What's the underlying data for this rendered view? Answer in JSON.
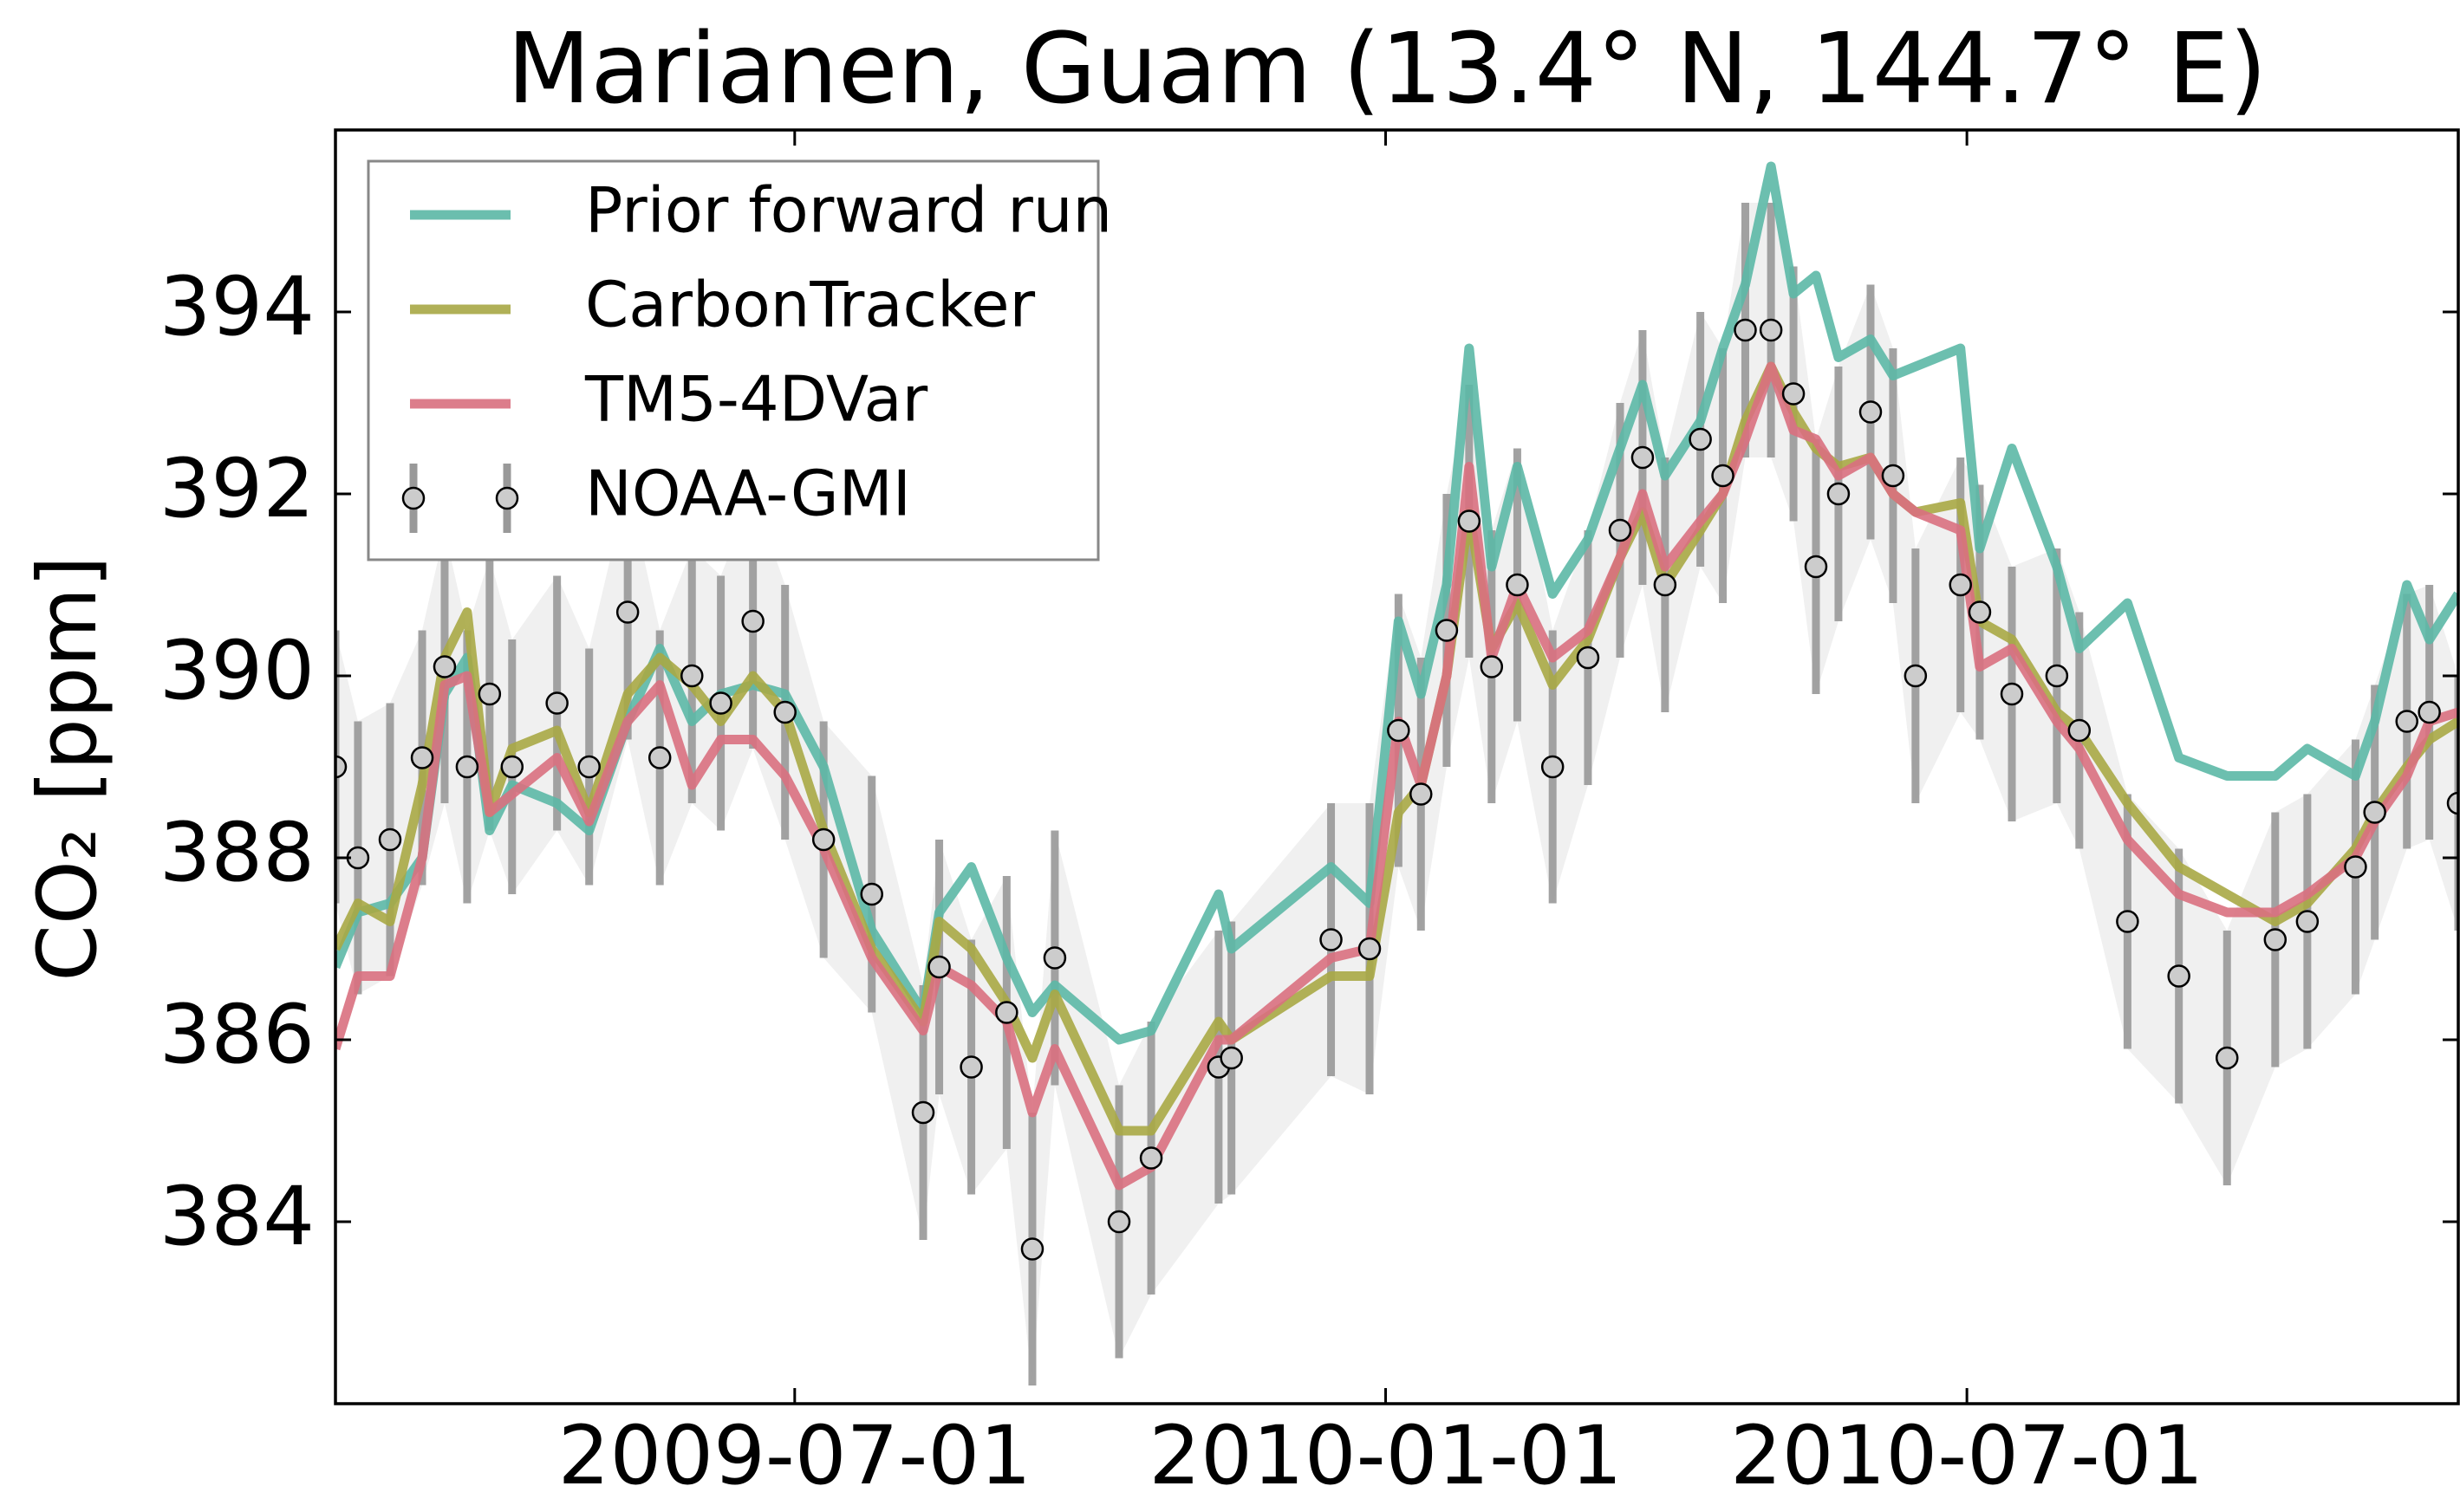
{
  "chart_data": {
    "type": "line",
    "title": "Marianen, Guam (13.4° N, 144.7° E)",
    "ylabel": "CO₂ [ppm]",
    "x": [
      "2009-02-08",
      "2009-02-15",
      "2009-02-25",
      "2009-03-07",
      "2009-03-14",
      "2009-03-21",
      "2009-03-28",
      "2009-04-04",
      "2009-04-18",
      "2009-04-28",
      "2009-05-10",
      "2009-05-20",
      "2009-05-30",
      "2009-06-08",
      "2009-06-18",
      "2009-06-28",
      "2009-07-10",
      "2009-07-25",
      "2009-08-10",
      "2009-08-15",
      "2009-08-25",
      "2009-09-05",
      "2009-09-13",
      "2009-09-20",
      "2009-10-10",
      "2009-10-20",
      "2009-11-10",
      "2009-11-14",
      "2009-12-15",
      "2009-12-27",
      "2010-01-05",
      "2010-01-12",
      "2010-01-20",
      "2010-01-27",
      "2010-02-03",
      "2010-02-11",
      "2010-02-22",
      "2010-03-05",
      "2010-03-15",
      "2010-03-22",
      "2010-03-29",
      "2010-04-09",
      "2010-04-16",
      "2010-04-23",
      "2010-05-01",
      "2010-05-08",
      "2010-05-15",
      "2010-05-22",
      "2010-06-01",
      "2010-06-08",
      "2010-06-15",
      "2010-06-29",
      "2010-07-05",
      "2010-07-15",
      "2010-07-29",
      "2010-08-05",
      "2010-08-20",
      "2010-09-05",
      "2010-09-20",
      "2010-10-05",
      "2010-10-15",
      "2010-10-30",
      "2010-11-05",
      "2010-11-15",
      "2010-11-22",
      "2010-12-01"
    ],
    "series": [
      {
        "name": "Prior forward run",
        "color": "#5cb8a6",
        "values": [
          386.8,
          387.4,
          387.5,
          388.0,
          389.8,
          390.2,
          388.3,
          388.8,
          388.6,
          388.3,
          389.5,
          390.3,
          389.5,
          389.8,
          389.9,
          389.8,
          389.0,
          387.2,
          386.3,
          387.4,
          387.9,
          386.9,
          386.3,
          386.6,
          386.0,
          386.1,
          387.6,
          387.0,
          387.9,
          387.5,
          390.6,
          389.8,
          391.0,
          393.6,
          391.2,
          392.3,
          390.9,
          391.5,
          392.5,
          393.2,
          392.2,
          392.8,
          393.6,
          394.3,
          395.6,
          394.2,
          394.4,
          393.5,
          393.7,
          393.3,
          393.4,
          393.6,
          391.4,
          392.5,
          391.2,
          390.3,
          390.8,
          389.1,
          388.9,
          388.9,
          389.2,
          388.9,
          389.5,
          391.0,
          390.4,
          390.9
        ]
      },
      {
        "name": "CarbonTracker",
        "color": "#a8a845",
        "values": [
          387.0,
          387.5,
          387.3,
          388.8,
          390.2,
          390.7,
          388.5,
          389.2,
          389.4,
          388.5,
          389.8,
          390.2,
          389.9,
          389.5,
          390.0,
          389.6,
          388.3,
          387.0,
          386.2,
          387.3,
          387.0,
          386.4,
          385.8,
          386.5,
          385.0,
          385.0,
          386.2,
          386.0,
          386.7,
          386.7,
          388.5,
          388.8,
          390.0,
          391.8,
          390.3,
          390.8,
          389.9,
          390.4,
          391.3,
          391.8,
          391.0,
          391.6,
          392.0,
          392.8,
          393.4,
          392.9,
          392.5,
          392.3,
          392.4,
          392.0,
          391.8,
          391.9,
          390.6,
          390.4,
          389.6,
          389.4,
          388.6,
          387.9,
          387.6,
          387.3,
          387.5,
          388.1,
          388.5,
          389.0,
          389.3,
          389.5
        ]
      },
      {
        "name": "TM5-4DVar",
        "color": "#d9707f",
        "values": [
          385.9,
          386.7,
          386.7,
          388.0,
          389.9,
          390.0,
          388.5,
          388.7,
          389.1,
          388.4,
          389.5,
          389.9,
          388.8,
          389.3,
          389.3,
          388.9,
          388.1,
          386.9,
          386.1,
          386.8,
          386.6,
          386.2,
          385.2,
          385.9,
          384.4,
          384.6,
          386.0,
          386.0,
          386.9,
          387.0,
          389.5,
          388.8,
          390.0,
          392.3,
          390.2,
          391.0,
          390.2,
          390.5,
          391.3,
          392.0,
          391.2,
          391.7,
          392.0,
          392.6,
          393.4,
          392.7,
          392.6,
          392.2,
          392.4,
          392.0,
          391.8,
          391.6,
          390.1,
          390.3,
          389.5,
          389.2,
          388.2,
          387.6,
          387.4,
          387.4,
          387.6,
          388.0,
          388.4,
          388.9,
          389.5,
          389.6
        ]
      },
      {
        "name": "NOAA-GMI",
        "color": "#999999",
        "values": [
          389.0,
          388.0,
          388.2,
          389.1,
          390.1,
          389.0,
          389.8,
          389.0,
          389.7,
          389.0,
          390.7,
          389.1,
          390.0,
          389.7,
          390.6,
          389.6,
          388.2,
          387.6,
          385.2,
          386.8,
          385.7,
          386.3,
          383.7,
          386.9,
          384.0,
          384.7,
          385.7,
          385.8,
          387.1,
          387.0,
          389.4,
          388.7,
          390.5,
          391.7,
          390.1,
          391.0,
          389.0,
          390.2,
          391.6,
          392.4,
          391.0,
          392.6,
          392.2,
          393.8,
          393.8,
          393.1,
          391.2,
          392.0,
          392.9,
          392.2,
          390.0,
          391.0,
          390.7,
          389.8,
          390.0,
          389.4,
          387.3,
          386.7,
          385.8,
          387.1,
          387.3,
          387.9,
          388.5,
          389.5,
          389.6,
          388.6
        ],
        "errors": [
          1.5,
          1.5,
          1.5,
          1.4,
          1.5,
          1.5,
          1.5,
          1.4,
          1.4,
          1.3,
          1.4,
          1.4,
          1.4,
          1.4,
          1.4,
          1.4,
          1.3,
          1.3,
          1.4,
          1.4,
          1.4,
          1.5,
          1.5,
          1.4,
          1.5,
          1.5,
          1.5,
          1.5,
          1.5,
          1.6,
          1.5,
          1.5,
          1.5,
          1.5,
          1.5,
          1.5,
          1.5,
          1.4,
          1.4,
          1.4,
          1.4,
          1.4,
          1.4,
          1.4,
          1.4,
          1.4,
          1.4,
          1.4,
          1.4,
          1.4,
          1.4,
          1.4,
          1.4,
          1.4,
          1.4,
          1.3,
          1.4,
          1.4,
          1.4,
          1.4,
          1.4,
          1.4,
          1.4,
          1.4,
          1.4,
          1.4
        ]
      }
    ],
    "xlim": [
      "2009-02-08",
      "2010-12-01"
    ],
    "xticks": [
      "2009-07-01",
      "2010-01-01",
      "2010-07-01"
    ],
    "ylim": [
      382,
      396
    ],
    "yticks": [
      384,
      386,
      388,
      390,
      392,
      394
    ],
    "legend": "upper left"
  }
}
